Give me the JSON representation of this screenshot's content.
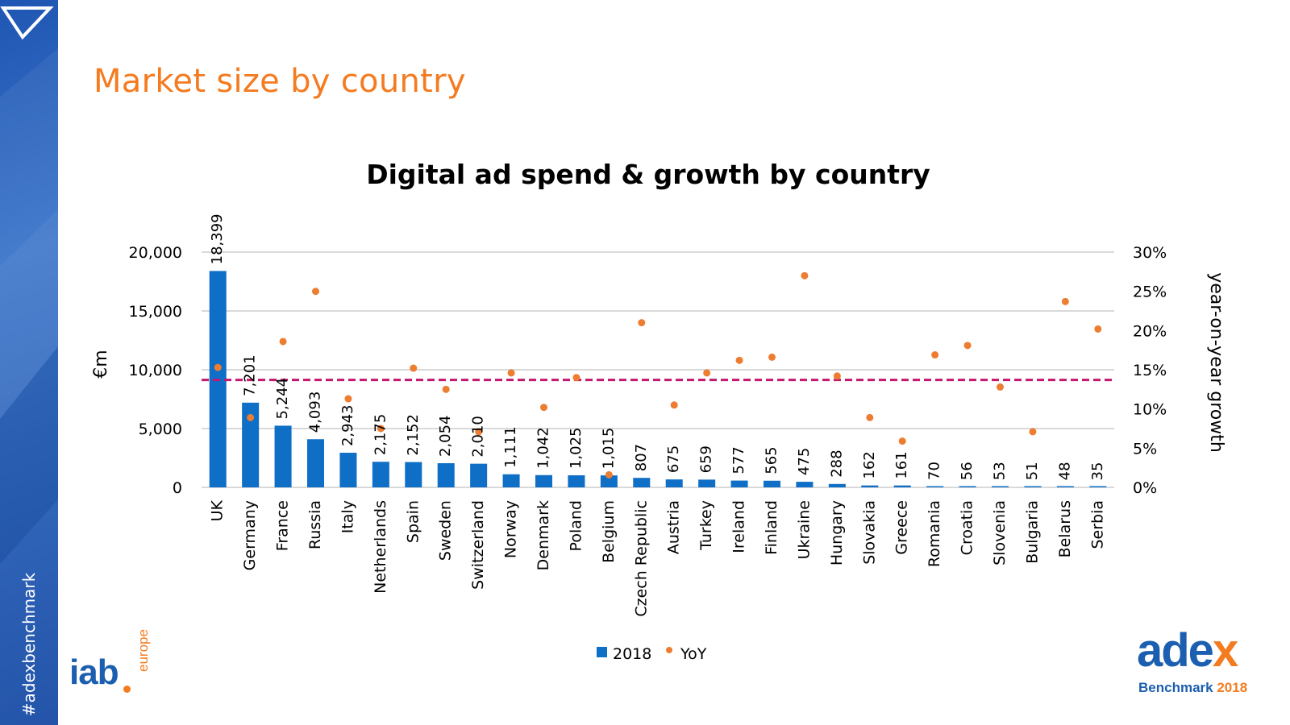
{
  "slide": {
    "title": "Market size by country",
    "hashtag": "#adexbenchmark"
  },
  "logos": {
    "iab_word": "iab",
    "iab_region": "europe",
    "adex_word_main": "ade",
    "adex_word_accent": "x",
    "adex_sub_main": "Benchmark ",
    "adex_sub_year": "2018"
  },
  "colors": {
    "title": "#f47b20",
    "bar": "#0f6fc6",
    "dot": "#ed7d31",
    "average_line": "#c4186f",
    "grid": "#d9d9d9"
  },
  "chart_data": {
    "type": "bar",
    "title": "Digital ad spend & growth by country",
    "ylabel": "€m",
    "y2label": "year-on-year growth",
    "ylim": [
      0,
      20000
    ],
    "yticks": [
      "0",
      "5,000",
      "10,000",
      "15,000",
      "20,000"
    ],
    "y2lim": [
      0,
      30
    ],
    "y2ticks": [
      "0%",
      "5%",
      "10%",
      "15%",
      "20%",
      "25%",
      "30%"
    ],
    "categories": [
      "UK",
      "Germany",
      "France",
      "Russia",
      "Italy",
      "Netherlands",
      "Spain",
      "Sweden",
      "Switzerland",
      "Norway",
      "Denmark",
      "Poland",
      "Belgium",
      "Czech Republic",
      "Austria",
      "Turkey",
      "Ireland",
      "Finland",
      "Ukraine",
      "Hungary",
      "Slovakia",
      "Greece",
      "Romania",
      "Croatia",
      "Slovenia",
      "Bulgaria",
      "Belarus",
      "Serbia"
    ],
    "series": [
      {
        "name": "2018",
        "type": "bar",
        "values": [
          18399,
          7201,
          5244,
          4093,
          2943,
          2175,
          2152,
          2054,
          2010,
          1111,
          1042,
          1025,
          1015,
          807,
          675,
          659,
          577,
          565,
          475,
          288,
          162,
          161,
          70,
          56,
          53,
          51,
          48,
          35
        ],
        "labels": [
          "18,399",
          "7,201",
          "5,244",
          "4,093",
          "2,943",
          "2,175",
          "2,152",
          "2,054",
          "2,010",
          "1,111",
          "1,042",
          "1,025",
          "1,015",
          "807",
          "675",
          "659",
          "577",
          "565",
          "475",
          "288",
          "162",
          "161",
          "70",
          "56",
          "53",
          "51",
          "48",
          "35"
        ]
      },
      {
        "name": "YoY",
        "type": "scatter",
        "axis": "secondary",
        "values": [
          15.3,
          8.9,
          18.6,
          25.0,
          11.3,
          7.5,
          15.2,
          12.5,
          7.1,
          14.6,
          10.2,
          14.0,
          1.6,
          21.0,
          10.5,
          14.6,
          16.2,
          16.6,
          27.0,
          14.2,
          8.9,
          5.9,
          16.9,
          18.1,
          12.8,
          7.1,
          23.7,
          20.2
        ]
      }
    ],
    "average_line": {
      "axis": "secondary",
      "value": 13.7
    },
    "legend": {
      "position": "bottom",
      "items": [
        "2018",
        "YoY"
      ]
    }
  }
}
